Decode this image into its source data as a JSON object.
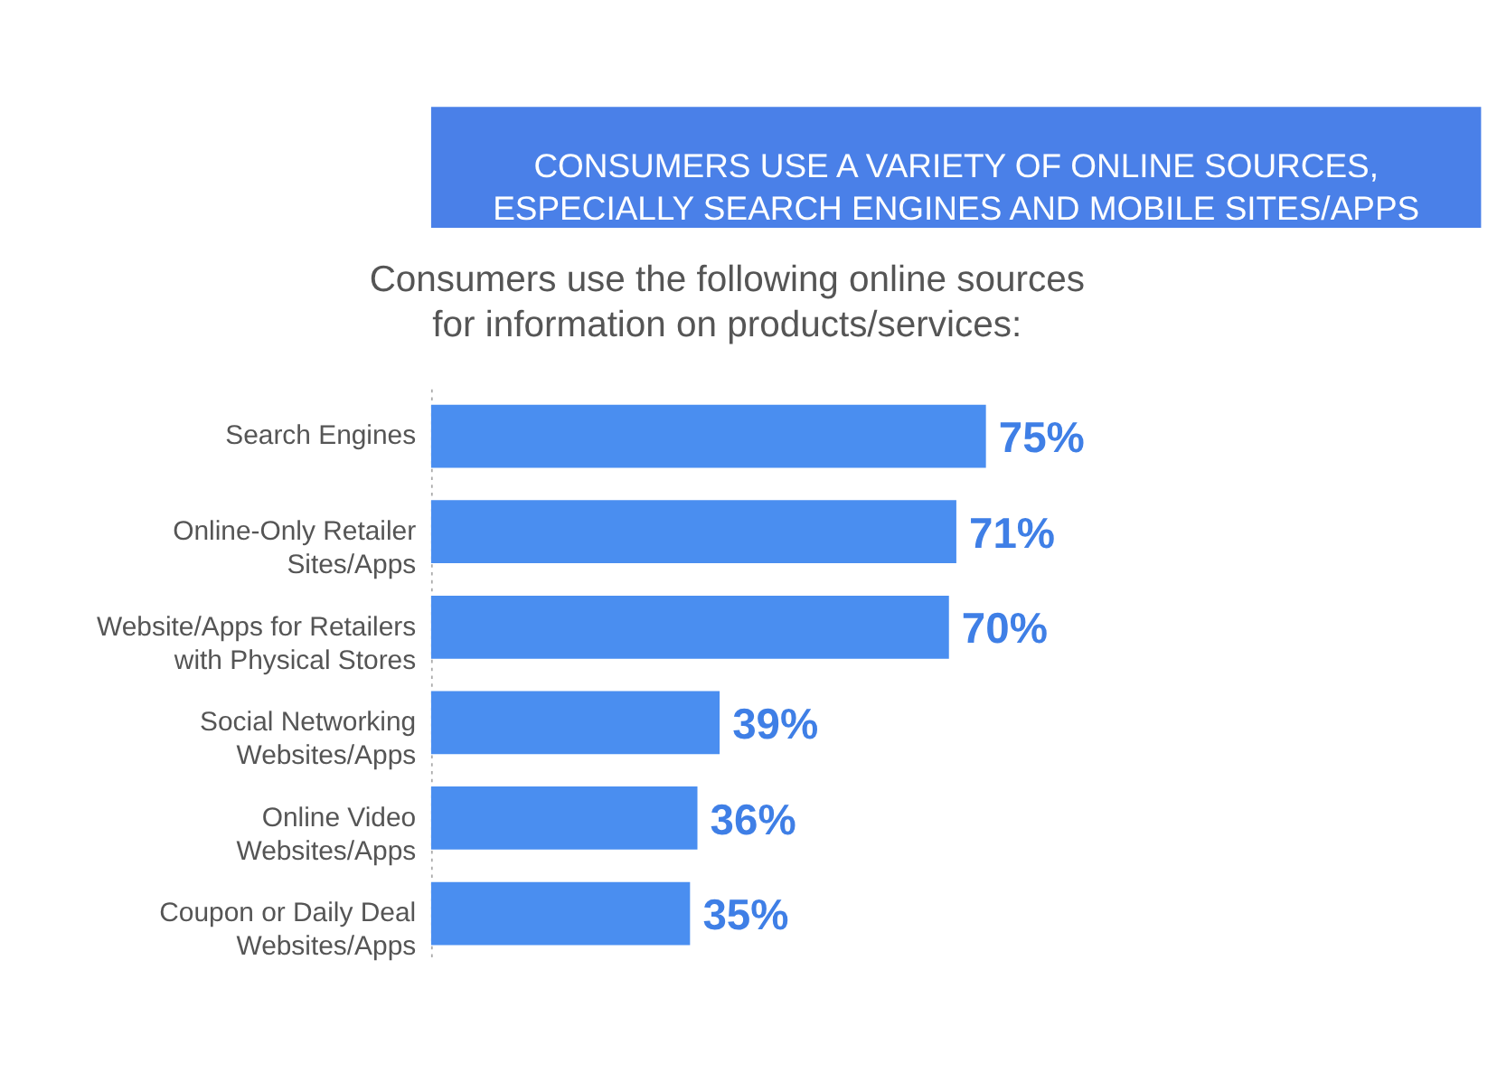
{
  "chart_data": {
    "type": "bar",
    "orientation": "horizontal",
    "title": "CONSUMERS USE A VARIETY OF ONLINE SOURCES,\nESPECIALLY SEARCH ENGINES AND MOBILE SITES/APPS",
    "subtitle": "Consumers use the following online sources\nfor information on products/services:",
    "categories": [
      "Search Engines",
      "Online-Only Retailer\nSites/Apps",
      "Website/Apps for Retailers\nwith Physical Stores",
      "Social Networking\nWebsites/Apps",
      "Online Video\nWebsites/Apps",
      "Coupon or Daily Deal\nWebsites/Apps"
    ],
    "values": [
      75,
      71,
      70,
      39,
      36,
      35
    ],
    "value_labels": [
      "75%",
      "71%",
      "70%",
      "39%",
      "36%",
      "35%"
    ],
    "color": "#4a8ef0",
    "grid": false,
    "tick_labels": "y"
  }
}
